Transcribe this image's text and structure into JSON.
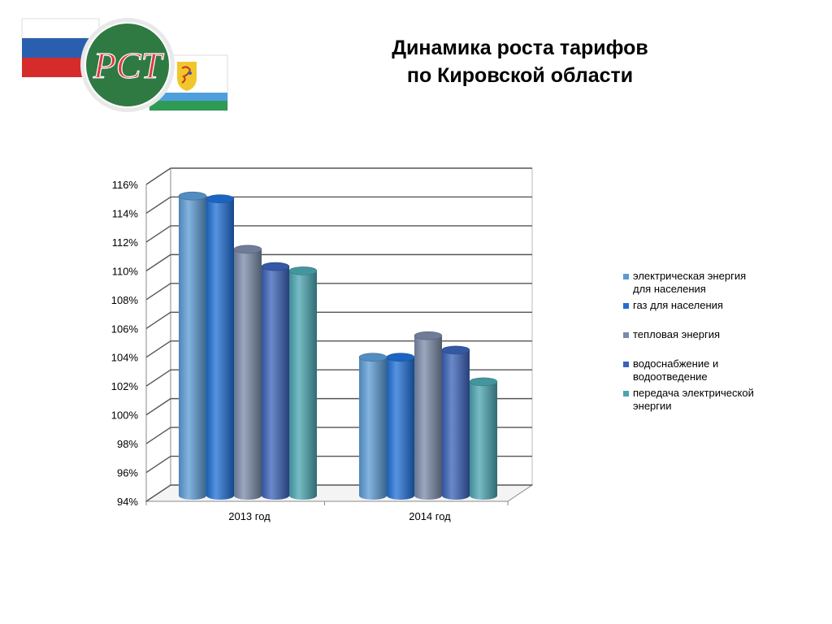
{
  "header": {
    "logo_text": "РСТ",
    "title_line1": "Динамика роста тарифов",
    "title_line2": "по Кировской области"
  },
  "colors": {
    "flag_white": "#ffffff",
    "flag_blue": "#2a5fb0",
    "flag_red": "#d62b2b",
    "logo_green": "#2f7a43",
    "logo_ring": "#e9e9e9",
    "logo_letters": "#d63b3b",
    "kirov_green": "#2e9a53",
    "kirov_blue": "#4f9fdc",
    "kirov_shield": "#f2c62a"
  },
  "chart_data": {
    "type": "bar",
    "title": "",
    "xlabel": "",
    "ylabel": "",
    "categories": [
      "2013 год",
      "2014 год"
    ],
    "ylim": [
      94,
      116
    ],
    "yticks": [
      94,
      96,
      98,
      100,
      102,
      104,
      106,
      108,
      110,
      112,
      114,
      116
    ],
    "ytick_labels": [
      "94%",
      "96%",
      "98%",
      "100%",
      "102%",
      "104%",
      "106%",
      "108%",
      "110%",
      "112%",
      "114%",
      "116%"
    ],
    "grid": true,
    "style": "3d-cylinder",
    "legend_position": "right",
    "series": [
      {
        "name": "электрическая энергия для населения",
        "values": [
          115.2,
          104.0
        ],
        "color": "#5b9bd5"
      },
      {
        "name": "газ для населения",
        "values": [
          115.0,
          104.0
        ],
        "color": "#1f6fd6"
      },
      {
        "name": "тепловая энергия",
        "values": [
          111.5,
          105.5
        ],
        "color": "#7a8aa8"
      },
      {
        "name": "водоснабжение и водоотведение",
        "values": [
          110.3,
          104.5
        ],
        "color": "#3a62b8"
      },
      {
        "name": "передача электрической энергии",
        "values": [
          110.0,
          102.3
        ],
        "color": "#4aa5b0"
      }
    ]
  },
  "legend": {
    "lines": [
      [
        "электрическая энергия",
        "для населения"
      ],
      [
        "газ для населения"
      ],
      [
        "тепловая энергия"
      ],
      [
        "водоснабжение и",
        "водоотведение"
      ],
      [
        "передача электрической",
        "энергии"
      ]
    ]
  }
}
